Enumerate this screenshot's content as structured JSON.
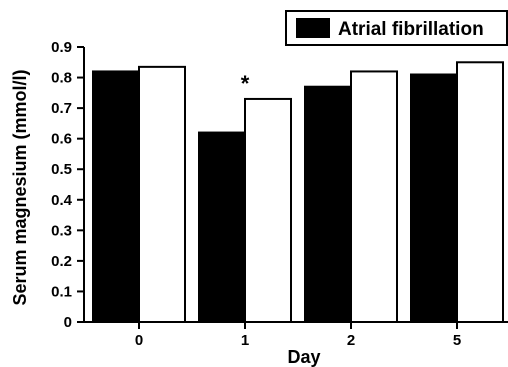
{
  "chart_data": {
    "type": "bar",
    "xlabel": "Day",
    "ylabel": "Serum magnesium (mmol/l)",
    "categories": [
      "0",
      "1",
      "2",
      "5"
    ],
    "ylim": [
      0,
      0.9
    ],
    "yticks": [
      "0",
      "0.1",
      "0.2",
      "0.3",
      "0.4",
      "0.5",
      "0.6",
      "0.7",
      "0.8",
      "0.9"
    ],
    "series": [
      {
        "name": "Atrial fibrillation",
        "fill": "#000000",
        "values": [
          0.82,
          0.62,
          0.77,
          0.81
        ]
      },
      {
        "fill": "#ffffff",
        "values": [
          0.835,
          0.73,
          0.82,
          0.85
        ]
      }
    ],
    "annotations": [
      {
        "text": "*",
        "category": "1"
      }
    ],
    "legend_position": "top-right",
    "grid": false
  }
}
